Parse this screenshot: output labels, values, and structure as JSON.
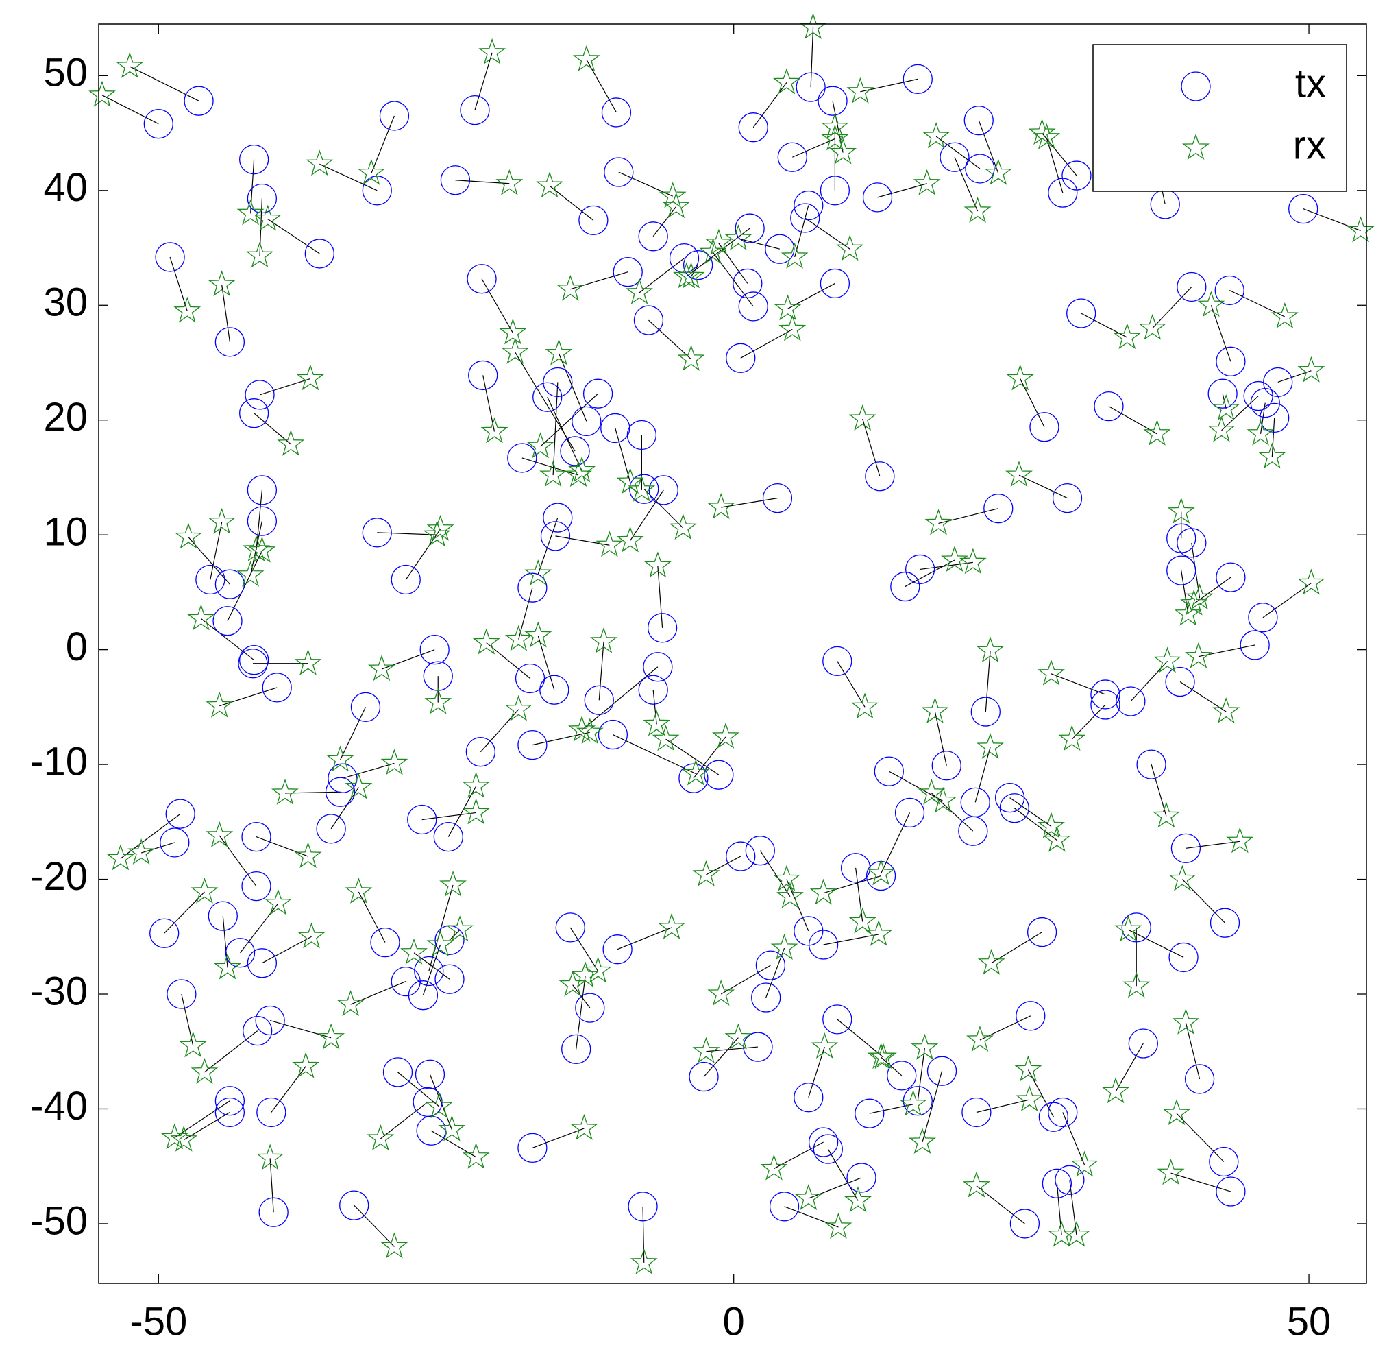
{
  "chart_data": {
    "type": "scatter",
    "xlim": [
      -55.2,
      55
    ],
    "ylim": [
      -55.2,
      54.5
    ],
    "xticks": [
      -50,
      0,
      50
    ],
    "yticks": [
      -50,
      -40,
      -30,
      -20,
      -10,
      0,
      10,
      20,
      30,
      40,
      50
    ],
    "grid": false,
    "legend": "upper right",
    "link_color": "#000000",
    "series": [
      {
        "name": "tx",
        "marker": "circle",
        "color": "#0000ff",
        "x": [
          -46.5,
          -50,
          -31,
          -29.5,
          -22.5,
          -10.2,
          -24.2,
          -12.2,
          -10,
          -41,
          -41.7,
          -36,
          -49,
          -43.8,
          -41.2,
          -41.7,
          -41,
          -41,
          -45.5,
          -43.8,
          -44,
          -41.8,
          -39.7,
          -41.7,
          -31,
          -28.5,
          -26,
          -25.7,
          -21.9,
          -21.8,
          -15.3,
          -16.2,
          -11.8,
          -13.8,
          -12.8,
          -10.3,
          -8,
          -18.4,
          -6.1,
          -7.8,
          -15.3,
          -15.5,
          -17.5,
          3.8,
          -6.2,
          -6.6,
          -7,
          -11.7,
          -10.5,
          -17.5,
          -17.7,
          -15.6,
          -22,
          -3.5,
          -1.3,
          -34,
          -32,
          -35,
          -34.2,
          -27.1,
          -24.8,
          -48.1,
          -48.6,
          -41.5,
          -41.5,
          -49.5,
          -44.4,
          -42.9,
          -41,
          -48,
          -41.4,
          -40.3,
          -43.8,
          -43.8,
          -40.2,
          -40,
          -33,
          -30.3,
          -28.5,
          -26.5,
          -27,
          -24.7,
          -24.7,
          -29.2,
          -26.4,
          -26.6,
          -26.3,
          -17.5,
          -14.2,
          -12.5,
          -13.7,
          -10.1,
          -7.9,
          -2.6,
          2.1,
          0.6,
          2.3,
          3.2,
          2.8,
          6.5,
          7.8,
          10.6,
          12.8,
          9,
          6.5,
          7.8,
          8.2,
          11.1,
          4.4,
          11.8,
          14.6,
          16,
          18.1,
          21.1,
          25.8,
          26.8,
          25.3,
          28.1,
          29.2,
          28.6,
          27.8,
          35,
          39.1,
          35.6,
          40.5,
          42.6,
          43.2,
          42.7,
          39.3,
          36.3,
          34.5,
          38.8,
          45.3,
          46,
          43.2,
          39.8,
          38.9,
          38.9,
          32.3,
          32.3,
          21.9,
          18.5,
          21,
          20.8,
          24,
          24.4,
          13.5,
          15.3,
          9,
          12.7,
          14.9,
          16.2,
          23,
          29,
          27,
          32.6,
          30.2,
          39.8,
          43.1,
          43.2,
          42.5,
          45.6,
          47.3,
          47,
          46.2,
          49.5,
          37.5,
          29.8,
          28.6,
          21.3,
          19.2,
          21.4,
          12.5,
          16,
          8.6,
          6.7,
          5.1,
          1.7,
          8.8,
          6.5,
          6.2,
          4,
          1.4,
          1.2,
          1.7,
          8.8,
          0.6,
          -4.3,
          -3.1,
          -9.2,
          -7.4,
          -7
        ],
        "y": [
          47.8,
          45.8,
          40,
          46.5,
          47,
          46.8,
          40.9,
          37.4,
          41.6,
          39.3,
          42.7,
          34.5,
          34.2,
          26.8,
          22.2,
          20.6,
          13.9,
          11.2,
          6.1,
          5.7,
          2.5,
          -1.2,
          -3.3,
          -0.9,
          10.2,
          6.1,
          0,
          -2.3,
          32.3,
          23.9,
          23.3,
          22,
          22.3,
          17.3,
          19.9,
          19.3,
          18.7,
          16.7,
          13.9,
          14,
          11.5,
          9.9,
          5.4,
          13.2,
          1.9,
          -1.5,
          -3.5,
          -4.4,
          -7.4,
          -8.3,
          -2.5,
          -3.5,
          -8.9,
          -11.2,
          -10.9,
          -11.2,
          -5,
          -15.6,
          -12.4,
          -14.8,
          -16.3,
          -14.3,
          -16.8,
          -16.3,
          -20.6,
          -24.7,
          -23.2,
          -26.4,
          -27.3,
          -30,
          -33.2,
          -32.3,
          -39.3,
          -40.3,
          -40.3,
          -49,
          -48.4,
          -25.5,
          -28.9,
          -28,
          -30.1,
          -25.3,
          -28.7,
          -36.8,
          -37,
          -39.4,
          -41.9,
          -43.4,
          -24.2,
          -31.2,
          -34.8,
          -26.1,
          -48.5,
          -37.2,
          -34.6,
          -18,
          -17.5,
          -27.5,
          -30.3,
          -24.5,
          -25.7,
          -19,
          -19.7,
          -32.2,
          -39,
          -42.9,
          -43.5,
          -46,
          -48.5,
          -40.4,
          -37.1,
          -39.3,
          -36.7,
          -40.3,
          -31.9,
          -24.6,
          -50,
          -46.5,
          -46.2,
          -40.3,
          -40.7,
          -24.2,
          -26.8,
          -34.3,
          -37.4,
          -44.6,
          -47.2,
          -23.8,
          -17.3,
          -10,
          -4.5,
          -2.8,
          0.4,
          2.8,
          6.3,
          9.3,
          9.7,
          6.9,
          -4.8,
          -3.9,
          -5.4,
          -10.1,
          -13.3,
          -15.8,
          -12.9,
          -13.8,
          -10.6,
          -14.2,
          -1,
          15.1,
          5.5,
          7,
          12.3,
          13.2,
          19.4,
          21.2,
          29.3,
          31.6,
          31.3,
          25.1,
          22.3,
          22.1,
          23.3,
          20.2,
          21.5,
          38.4,
          38.8,
          41.3,
          39.8,
          46.1,
          42.9,
          41.9,
          39.4,
          49.7,
          47.8,
          49,
          42.9,
          45.5,
          40,
          38.7,
          37.6,
          34.9,
          36.7,
          31.9,
          29.9,
          31.9,
          25.4,
          34.1,
          33.5,
          32.9,
          28.7,
          36
        ]
      },
      {
        "name": "rx",
        "marker": "star",
        "color": "#1a8a1a",
        "x": [
          -52.5,
          -54.9,
          -36,
          -31.5,
          -21,
          -12.8,
          -19.5,
          -16,
          -5.3,
          -41.2,
          -42,
          -40.5,
          -47.5,
          -44.5,
          -36.8,
          -38.5,
          -41.5,
          -42,
          -44.5,
          -47.4,
          -41,
          -37,
          -44.7,
          -46.3,
          -25.8,
          -25.5,
          -30.6,
          -25.7,
          -19.2,
          -20.8,
          -15.7,
          -13.2,
          -16.8,
          -19,
          -15.2,
          -9,
          -8,
          -13.5,
          -9,
          -4.4,
          -17,
          -10.8,
          -18.7,
          -1.1,
          -6.6,
          -13.2,
          -6.7,
          -11.3,
          -3.3,
          -12.5,
          -21.5,
          -17,
          -18.7,
          -0.7,
          -5.9,
          -29.5,
          -34.2,
          -32.6,
          -39,
          -22.4,
          -22.4,
          -53.3,
          -51.5,
          -37,
          -44.7,
          -46,
          -44,
          -39.6,
          -36.7,
          -47,
          -46,
          -35,
          -48.6,
          -47.8,
          -37.2,
          -40.3,
          -29.5,
          -32.6,
          -33.3,
          -24.4,
          -25.5,
          -23.8,
          -27.8,
          -25.6,
          -24.5,
          -30.7,
          -22.4,
          -13,
          -11.8,
          -14,
          -12.9,
          -5.4,
          -7.8,
          0.4,
          -2.4,
          -2.4,
          4.9,
          -1.1,
          4.4,
          4.6,
          12.6,
          11.2,
          7.8,
          13,
          7.9,
          3.5,
          10.8,
          6.5,
          9.1,
          15.6,
          12.8,
          16.6,
          16.4,
          25.7,
          21.4,
          22.4,
          21.1,
          28.5,
          29.8,
          30.5,
          25.6,
          35,
          34.3,
          33.2,
          39.3,
          38.5,
          38,
          39,
          44,
          37.6,
          37.7,
          42.8,
          40.4,
          50.2,
          40,
          40.5,
          38.9,
          39.5,
          29.4,
          27.6,
          22.3,
          17.5,
          22.3,
          17.2,
          27.6,
          28.1,
          18.2,
          12.8,
          11.4,
          11.2,
          19.2,
          20.8,
          17.8,
          24.8,
          24.9,
          36.8,
          34.2,
          36.4,
          47.9,
          41.5,
          42.8,
          42.4,
          50.2,
          46.8,
          45.8,
          54.5,
          36.6,
          26.8,
          27.2,
          23,
          21.2,
          17.6,
          16.8,
          11,
          9.5,
          6.9,
          8.8,
          4.6,
          8.8,
          5.3,
          10.1,
          0.4,
          -4.1,
          -1.3,
          -1.8,
          4.7,
          5.1,
          -8.2,
          -3.7,
          -14.2,
          -3.7,
          -5
        ],
        "y": [
          50.8,
          48.3,
          42.3,
          41.5,
          52,
          51.4,
          40.6,
          40.4,
          39.5,
          34.3,
          38,
          37.5,
          29.5,
          31.8,
          23.6,
          17.9,
          8.7,
          6.5,
          11.1,
          9.8,
          8.6,
          -1.2,
          -4.9,
          2.7,
          10,
          10.5,
          -1.7,
          -4.6,
          27.6,
          19,
          15.2,
          15.6,
          17.7,
          25.9,
          25.8,
          14.6,
          13.9,
          15.2,
          9.5,
          10.6,
          6.6,
          9.1,
          0.9,
          12.4,
          7.3,
          -7,
          -6.5,
          0.7,
          -10.8,
          -7.2,
          0.6,
          1.2,
          -5.2,
          -7.6,
          -7.8,
          -9.9,
          -9.6,
          -12,
          -12.5,
          -14.2,
          -11.9,
          -18.2,
          -17.7,
          -18,
          -16.2,
          -21.1,
          -27.7,
          -22.1,
          -25,
          -34.5,
          -36.8,
          -33.8,
          -42.5,
          -42.7,
          -36.3,
          -44.3,
          -52,
          -21.1,
          -30.9,
          -20.5,
          -25.7,
          -24.4,
          -26.4,
          -39.8,
          -41.8,
          -42.6,
          -44.2,
          -41.7,
          -28,
          -29.2,
          -28.4,
          -24.2,
          -53.4,
          -33.8,
          -35,
          -19.6,
          -21.5,
          -30,
          -26,
          -20,
          -24.8,
          -23.7,
          -21.2,
          -35.5,
          -34.6,
          -45.2,
          -48,
          -47.8,
          -50.3,
          -39.6,
          -35.5,
          -34.7,
          -42.9,
          -39.2,
          -34,
          -27.3,
          -46.7,
          -51,
          -51,
          -44.9,
          -36.6,
          -29.3,
          -24.4,
          -38.5,
          -32.5,
          -40.4,
          -45.6,
          -20,
          -16.7,
          -14.5,
          -1,
          -5.4,
          -0.6,
          5.8,
          4,
          4.5,
          12,
          3.1,
          -7.8,
          -2.1,
          -0.1,
          -5.4,
          -8.5,
          -12.5,
          -15.4,
          -16.6,
          -13.2,
          -19.5,
          -5,
          20.1,
          7.8,
          7.6,
          11,
          15.2,
          23.6,
          18.8,
          27.2,
          28,
          29,
          30,
          21,
          19.1,
          24.3,
          16.8,
          18.8,
          36.5,
          43,
          45,
          44.6,
          41.5,
          38.2,
          44.7,
          40.6,
          48.6,
          43.3,
          54.2,
          44.5,
          49.4,
          45.5,
          34.2,
          34.9,
          35.8,
          32.5,
          35.4,
          34.6,
          29.7,
          27.9,
          31.1,
          32.5,
          31.4,
          25.3,
          38.6
        ]
      }
    ]
  }
}
